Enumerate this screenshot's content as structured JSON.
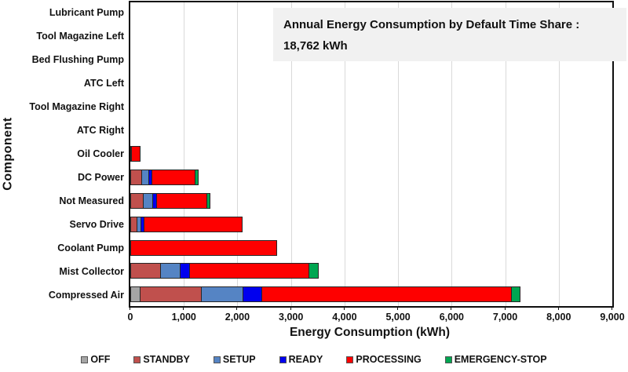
{
  "chart_data": {
    "type": "bar",
    "orientation": "horizontal",
    "stacked": true,
    "annotation": {
      "line1": "Annual Energy Consumption by Default Time Share :",
      "line2": "18,762 kWh"
    },
    "xlabel": "Energy Consumption (kWh)",
    "ylabel": "Component",
    "xlim": [
      0,
      9000
    ],
    "xticks": [
      0,
      1000,
      2000,
      3000,
      4000,
      5000,
      6000,
      7000,
      8000,
      9000
    ],
    "xtick_labels": [
      "0",
      "1,000",
      "2,000",
      "3,000",
      "4,000",
      "5,000",
      "6,000",
      "7,000",
      "8,000",
      "9,000"
    ],
    "grid": true,
    "legend_position": "bottom",
    "background_color": "#ffffff",
    "gridline_color": "#d9d9d9",
    "categories": [
      "Lubricant Pump",
      "Tool Magazine Left",
      "Bed Flushing Pump",
      "ATC Left",
      "Tool Magazine Right",
      "ATC Right",
      "Oil Cooler",
      "DC Power",
      "Not Measured",
      "Servo Drive",
      "Coolant Pump",
      "Mist Collector",
      "Compressed Air"
    ],
    "series": [
      {
        "name": "OFF",
        "color": "#A5A5A5",
        "values": [
          0,
          0,
          0,
          0,
          0,
          0,
          0,
          0,
          0,
          0,
          0,
          0,
          185
        ]
      },
      {
        "name": "STANDBY",
        "color": "#C0504D",
        "values": [
          0,
          0,
          0,
          0,
          0,
          0,
          0,
          215,
          255,
          130,
          0,
          565,
          1170
        ]
      },
      {
        "name": "SETUP",
        "color": "#5584C4",
        "values": [
          0,
          0,
          0,
          0,
          0,
          0,
          0,
          145,
          180,
          85,
          0,
          385,
          780
        ]
      },
      {
        "name": "READY",
        "color": "#0000EE",
        "values": [
          0,
          0,
          0,
          0,
          0,
          0,
          25,
          75,
          90,
          75,
          0,
          200,
          365
        ]
      },
      {
        "name": "PROCESSING",
        "color": "#FE0000",
        "values": [
          0,
          0,
          0,
          0,
          0,
          0,
          175,
          830,
          955,
          1845,
          2740,
          2240,
          4690
        ]
      },
      {
        "name": "EMERGENCY-STOP",
        "color": "#00A651",
        "values": [
          0,
          0,
          0,
          0,
          0,
          0,
          0,
          65,
          80,
          0,
          0,
          190,
          175
        ]
      }
    ]
  }
}
